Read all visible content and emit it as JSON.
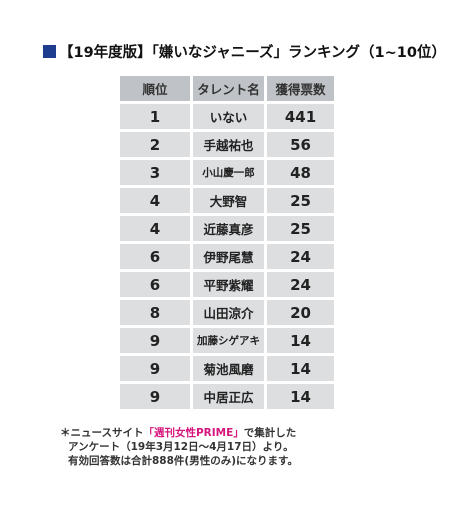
{
  "title": "【19年度版】「嫌いなジャニーズ」ランキング（1~10位）",
  "chart_data": {
    "type": "table",
    "columns": [
      "順位",
      "タレント名",
      "獲得票数"
    ],
    "rows": [
      {
        "rank": "1",
        "name": "いない",
        "votes": "441"
      },
      {
        "rank": "2",
        "name": "手越祐也",
        "votes": "56"
      },
      {
        "rank": "3",
        "name": "小山慶一郎",
        "votes": "48"
      },
      {
        "rank": "4",
        "name": "大野智",
        "votes": "25"
      },
      {
        "rank": "4",
        "name": "近藤真彦",
        "votes": "25"
      },
      {
        "rank": "6",
        "name": "伊野尾慧",
        "votes": "24"
      },
      {
        "rank": "6",
        "name": "平野紫耀",
        "votes": "24"
      },
      {
        "rank": "8",
        "name": "山田涼介",
        "votes": "20"
      },
      {
        "rank": "9",
        "name": "加藤シゲアキ",
        "votes": "14"
      },
      {
        "rank": "9",
        "name": "菊池風磨",
        "votes": "14"
      },
      {
        "rank": "9",
        "name": "中居正広",
        "votes": "14"
      }
    ]
  },
  "note": {
    "prefix": "＊ニュースサイト",
    "magazine": "「週刊女性PRIME」",
    "suffix": "で集計した",
    "line2": "アンケート（19年3月12日～4月17日）より。",
    "line3": "有効回答数は合計888件(男性のみ)になります。"
  },
  "colors": {
    "title_square": "#1f3d8f",
    "header_bg": "#bfc2c6",
    "row_bg": "#dcdee0",
    "magazine_text": "#d6177e"
  }
}
